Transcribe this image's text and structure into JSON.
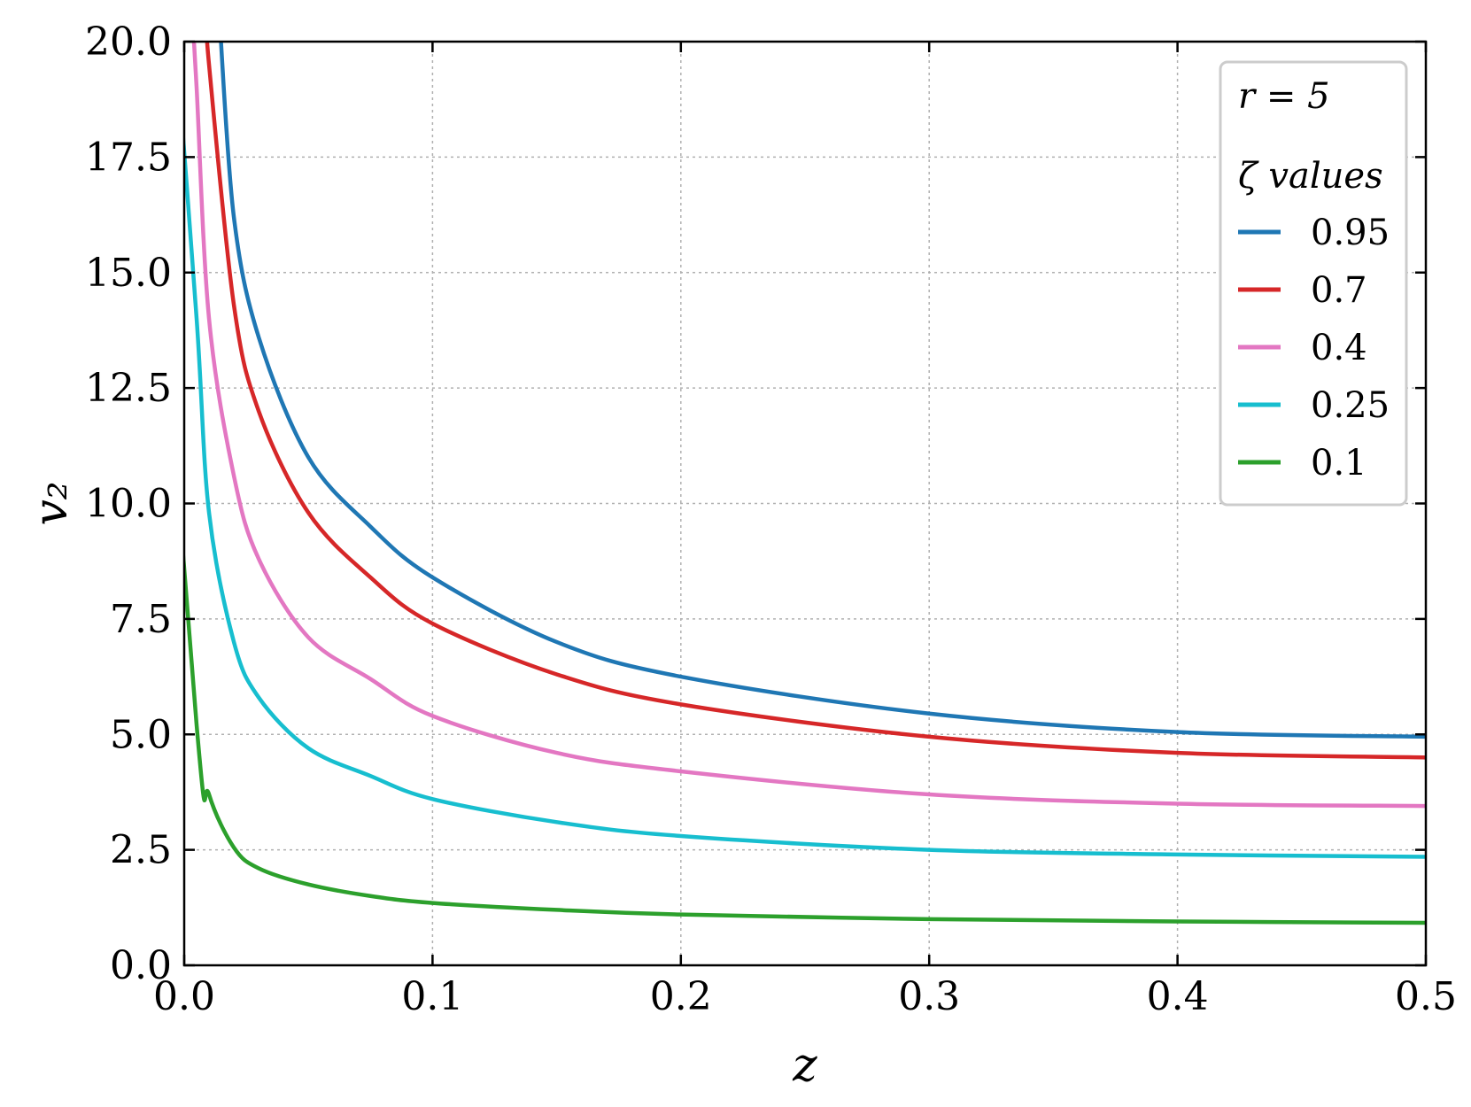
{
  "chart_data": {
    "type": "line",
    "xlabel": "z",
    "ylabel": "v₂",
    "xlim": [
      0.0,
      0.5
    ],
    "ylim": [
      0.0,
      20.0
    ],
    "x_ticks": [
      "0.0",
      "0.1",
      "0.2",
      "0.3",
      "0.4",
      "0.5"
    ],
    "x_tick_values": [
      0.0,
      0.1,
      0.2,
      0.3,
      0.4,
      0.5
    ],
    "y_ticks": [
      "0.0",
      "2.5",
      "5.0",
      "7.5",
      "10.0",
      "12.5",
      "15.0",
      "17.5",
      "20.0"
    ],
    "y_tick_values": [
      0.0,
      2.5,
      5.0,
      7.5,
      10.0,
      12.5,
      15.0,
      17.5,
      20.0
    ],
    "grid": true,
    "legend": {
      "placement": "top-right",
      "annotation": "r = 5",
      "title": "ζ values"
    },
    "x": [
      0.005,
      0.01,
      0.02,
      0.03,
      0.05,
      0.075,
      0.1,
      0.15,
      0.2,
      0.3,
      0.4,
      0.5
    ],
    "series": [
      {
        "name": "0.95",
        "color": "#1f77b4",
        "values": [
          null,
          null,
          16.2,
          13.6,
          11.0,
          9.5,
          8.4,
          7.0,
          6.25,
          5.45,
          5.05,
          4.95
        ]
      },
      {
        "name": "0.7",
        "color": "#d62728",
        "values": [
          null,
          19.5,
          14.3,
          12.0,
          9.8,
          8.4,
          7.4,
          6.3,
          5.65,
          4.95,
          4.6,
          4.5
        ]
      },
      {
        "name": "0.4",
        "color": "#e377c2",
        "values": [
          19.0,
          14.0,
          10.6,
          8.8,
          7.1,
          6.2,
          5.4,
          4.6,
          4.2,
          3.7,
          3.5,
          3.45
        ]
      },
      {
        "name": "0.25",
        "color": "#17becf",
        "values": [
          14.0,
          9.8,
          7.0,
          5.8,
          4.7,
          4.1,
          3.6,
          3.1,
          2.8,
          2.5,
          2.4,
          2.35
        ]
      },
      {
        "name": "0.1",
        "color": "#2ca02c",
        "values": [
          5.2,
          3.7,
          2.55,
          2.1,
          1.75,
          1.5,
          1.35,
          1.2,
          1.1,
          1.0,
          0.95,
          0.92
        ]
      }
    ]
  }
}
